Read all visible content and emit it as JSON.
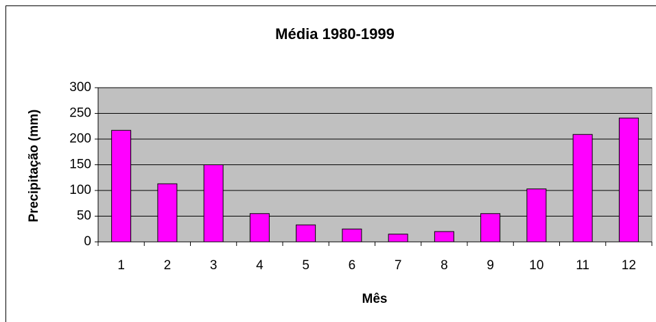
{
  "chart_data": {
    "type": "bar",
    "title": "Média 1980-1999",
    "x_label": "Mês",
    "y_label": "Precipitação (mm)",
    "categories": [
      "1",
      "2",
      "3",
      "4",
      "5",
      "6",
      "7",
      "8",
      "9",
      "10",
      "11",
      "12"
    ],
    "values": [
      217,
      113,
      150,
      55,
      33,
      25,
      15,
      20,
      55,
      103,
      209,
      241
    ],
    "color": "#ff00ff",
    "ylim": [
      0,
      300
    ],
    "yticks": [
      0,
      50,
      100,
      150,
      200,
      250,
      300
    ],
    "grid": true
  }
}
